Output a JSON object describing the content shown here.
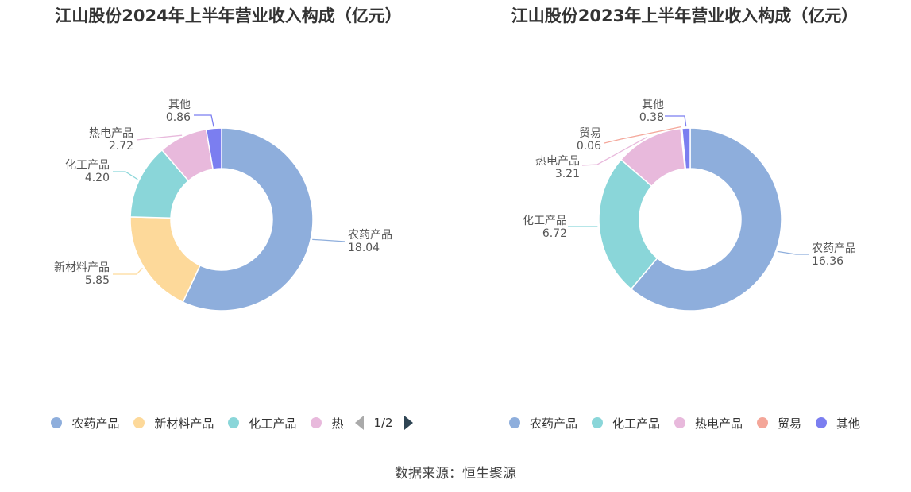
{
  "colors": {
    "农药产品": "#8eaedc",
    "新材料产品": "#fdd99a",
    "化工产品": "#8ad6d9",
    "热电产品": "#e8b9dc",
    "贸易": "#f4a699",
    "其他": "#7b7ef0"
  },
  "chart_data": [
    {
      "type": "pie",
      "title": "江山股份2024年上半年营业收入构成（亿元）",
      "categories": [
        "农药产品",
        "新材料产品",
        "化工产品",
        "热电产品",
        "其他"
      ],
      "values": [
        18.04,
        5.85,
        4.2,
        2.72,
        0.86
      ],
      "value_labels": [
        "18.04",
        "5.85",
        "4.20",
        "2.72",
        "0.86"
      ],
      "donut": true,
      "legend_position": "bottom",
      "legend_items": [
        "农药产品",
        "新材料产品",
        "化工产品",
        "热"
      ],
      "legend_page": "1/2"
    },
    {
      "type": "pie",
      "title": "江山股份2023年上半年营业收入构成（亿元）",
      "categories": [
        "农药产品",
        "化工产品",
        "热电产品",
        "贸易",
        "其他"
      ],
      "values": [
        16.36,
        6.72,
        3.21,
        0.06,
        0.38
      ],
      "value_labels": [
        "16.36",
        "6.72",
        "3.21",
        "0.06",
        "0.38"
      ],
      "donut": true,
      "legend_position": "bottom",
      "legend_items": [
        "农药产品",
        "化工产品",
        "热电产品",
        "贸易",
        "其他"
      ]
    }
  ],
  "footer": "数据来源：恒生聚源"
}
